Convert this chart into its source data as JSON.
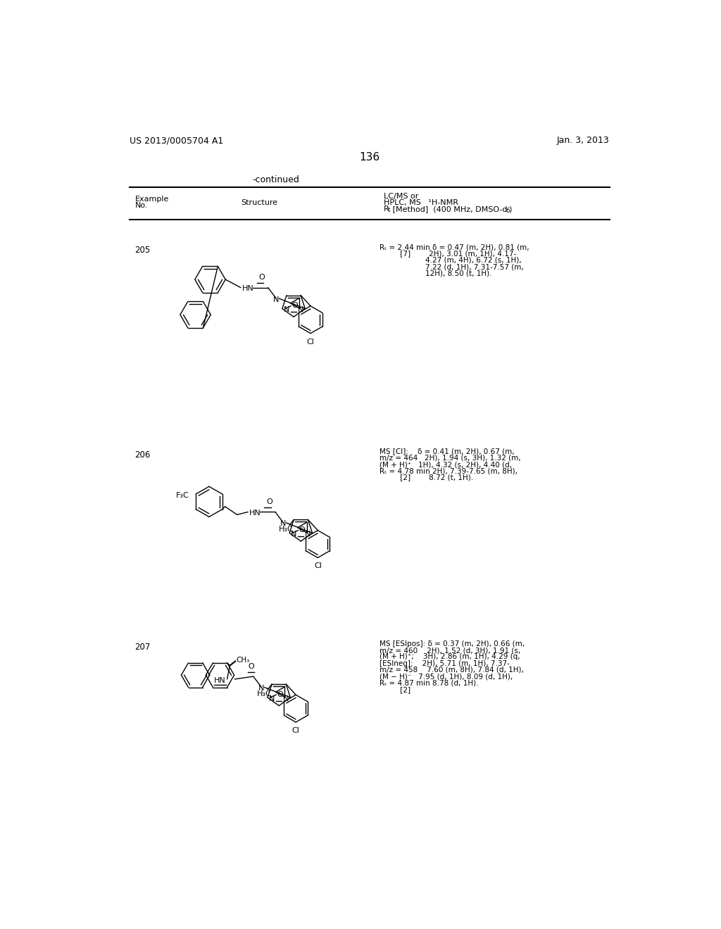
{
  "page_number": "136",
  "left_header": "US 2013/0005704 A1",
  "right_header": "Jan. 3, 2013",
  "continued_label": "-continued",
  "bg_color": "#ffffff",
  "text_color": "#000000",
  "nmr_205_lines": [
    "Rₜ = 2.44 min δ = 0.47 (m, 2H), 0.81 (m,",
    "         [7]        2H), 3.01 (m, 1H), 4.17-",
    "                    4.27 (m, 4H), 6.72 (s, 1H),",
    "                    7.22 (d, 1H), 7.31-7.57 (m,",
    "                    12H), 8.50 (t, 1H)."
  ],
  "nmr_206_lines": [
    "MS [CI]:    δ = 0.41 (m, 2H), 0.67 (m,",
    "m/z = 464   2H), 1.94 (s, 3H), 1.32 (m,",
    "(M + H)⁺   1H), 4.32 (s, 2H), 4.40 (d,",
    "Rₜ = 4.78 min 2H), 7.39-7.65 (m, 8H),",
    "         [2]        8.72 (t, 1H)."
  ],
  "nmr_207_lines": [
    "MS [ESIpos]: δ = 0.37 (m, 2H), 0.66 (m,",
    "m/z = 460    2H), 1.52 (d, 3H), 1.91 (s,",
    "(M + H)⁺;    3H), 2.86 (m, 1H), 4.29 (q,",
    "[ESIneg]:    2H), 5.71 (m, 1H), 7.37-",
    "m/z = 458    7.60 (m, 8H), 7.84 (d, 1H),",
    "(M − H)⁻   7.95 (d, 1H), 8.09 (d, 1H),",
    "Rₜ = 4.87 min 8.78 (d, 1H).",
    "         [2]"
  ]
}
